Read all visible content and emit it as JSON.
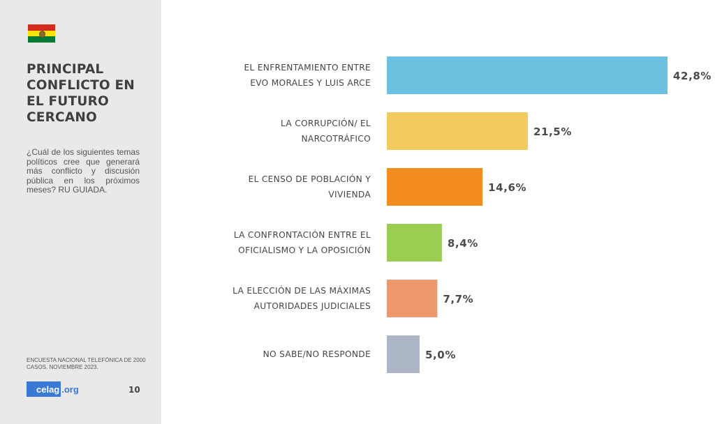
{
  "sidebar": {
    "title_lines": [
      "PRINCIPAL",
      "CONFLICTO EN",
      "EL FUTURO",
      "CERCANO"
    ],
    "question": "¿Cuál de los siguientes temas políticos cree que generará más conflicto y discusión pública en los próximos meses? RU GUIADA.",
    "source": "ENCUESTA NACIONAL TELEFÓNICA DE 2000 CASOS. NOVIEMBRE 2023.",
    "logo_main": "celag",
    "logo_ext": ".org",
    "page_number": "10",
    "flag_icon": "bolivia-flag-icon",
    "flag_colors": [
      "#d52b1e",
      "#f9e300",
      "#007934"
    ]
  },
  "chart_data": {
    "type": "bar",
    "orientation": "horizontal",
    "title": "",
    "xlabel": "",
    "ylabel": "",
    "xlim": [
      0,
      50
    ],
    "grid": false,
    "legend": "none",
    "categories": [
      [
        "EL ENFRENTAMIENTO ENTRE",
        "EVO MORALES Y LUIS ARCE"
      ],
      [
        "LA CORRUPCIÓN/ EL",
        "NARCOTRÁFICO"
      ],
      [
        "EL CENSO DE POBLACIÓN Y",
        "VIVIENDA"
      ],
      [
        "LA CONFRONTACIÓN ENTRE EL",
        "OFICIALISMO Y LA OPOSICIÓN"
      ],
      [
        "LA ELECCIÓN DE LAS MÁXIMAS",
        "AUTORIDADES JUDICIALES"
      ],
      [
        "NO SABE/NO RESPONDE"
      ]
    ],
    "values": [
      42.8,
      21.5,
      14.6,
      8.4,
      7.7,
      5.0
    ],
    "value_labels": [
      "42,8%",
      "21,5%",
      "14,6%",
      "8,4%",
      "7,7%",
      "5,0%"
    ],
    "colors": [
      "#6cc1e1",
      "#f4cb5f",
      "#f28c1e",
      "#9ccd53",
      "#ef9870",
      "#adb6c7"
    ]
  }
}
